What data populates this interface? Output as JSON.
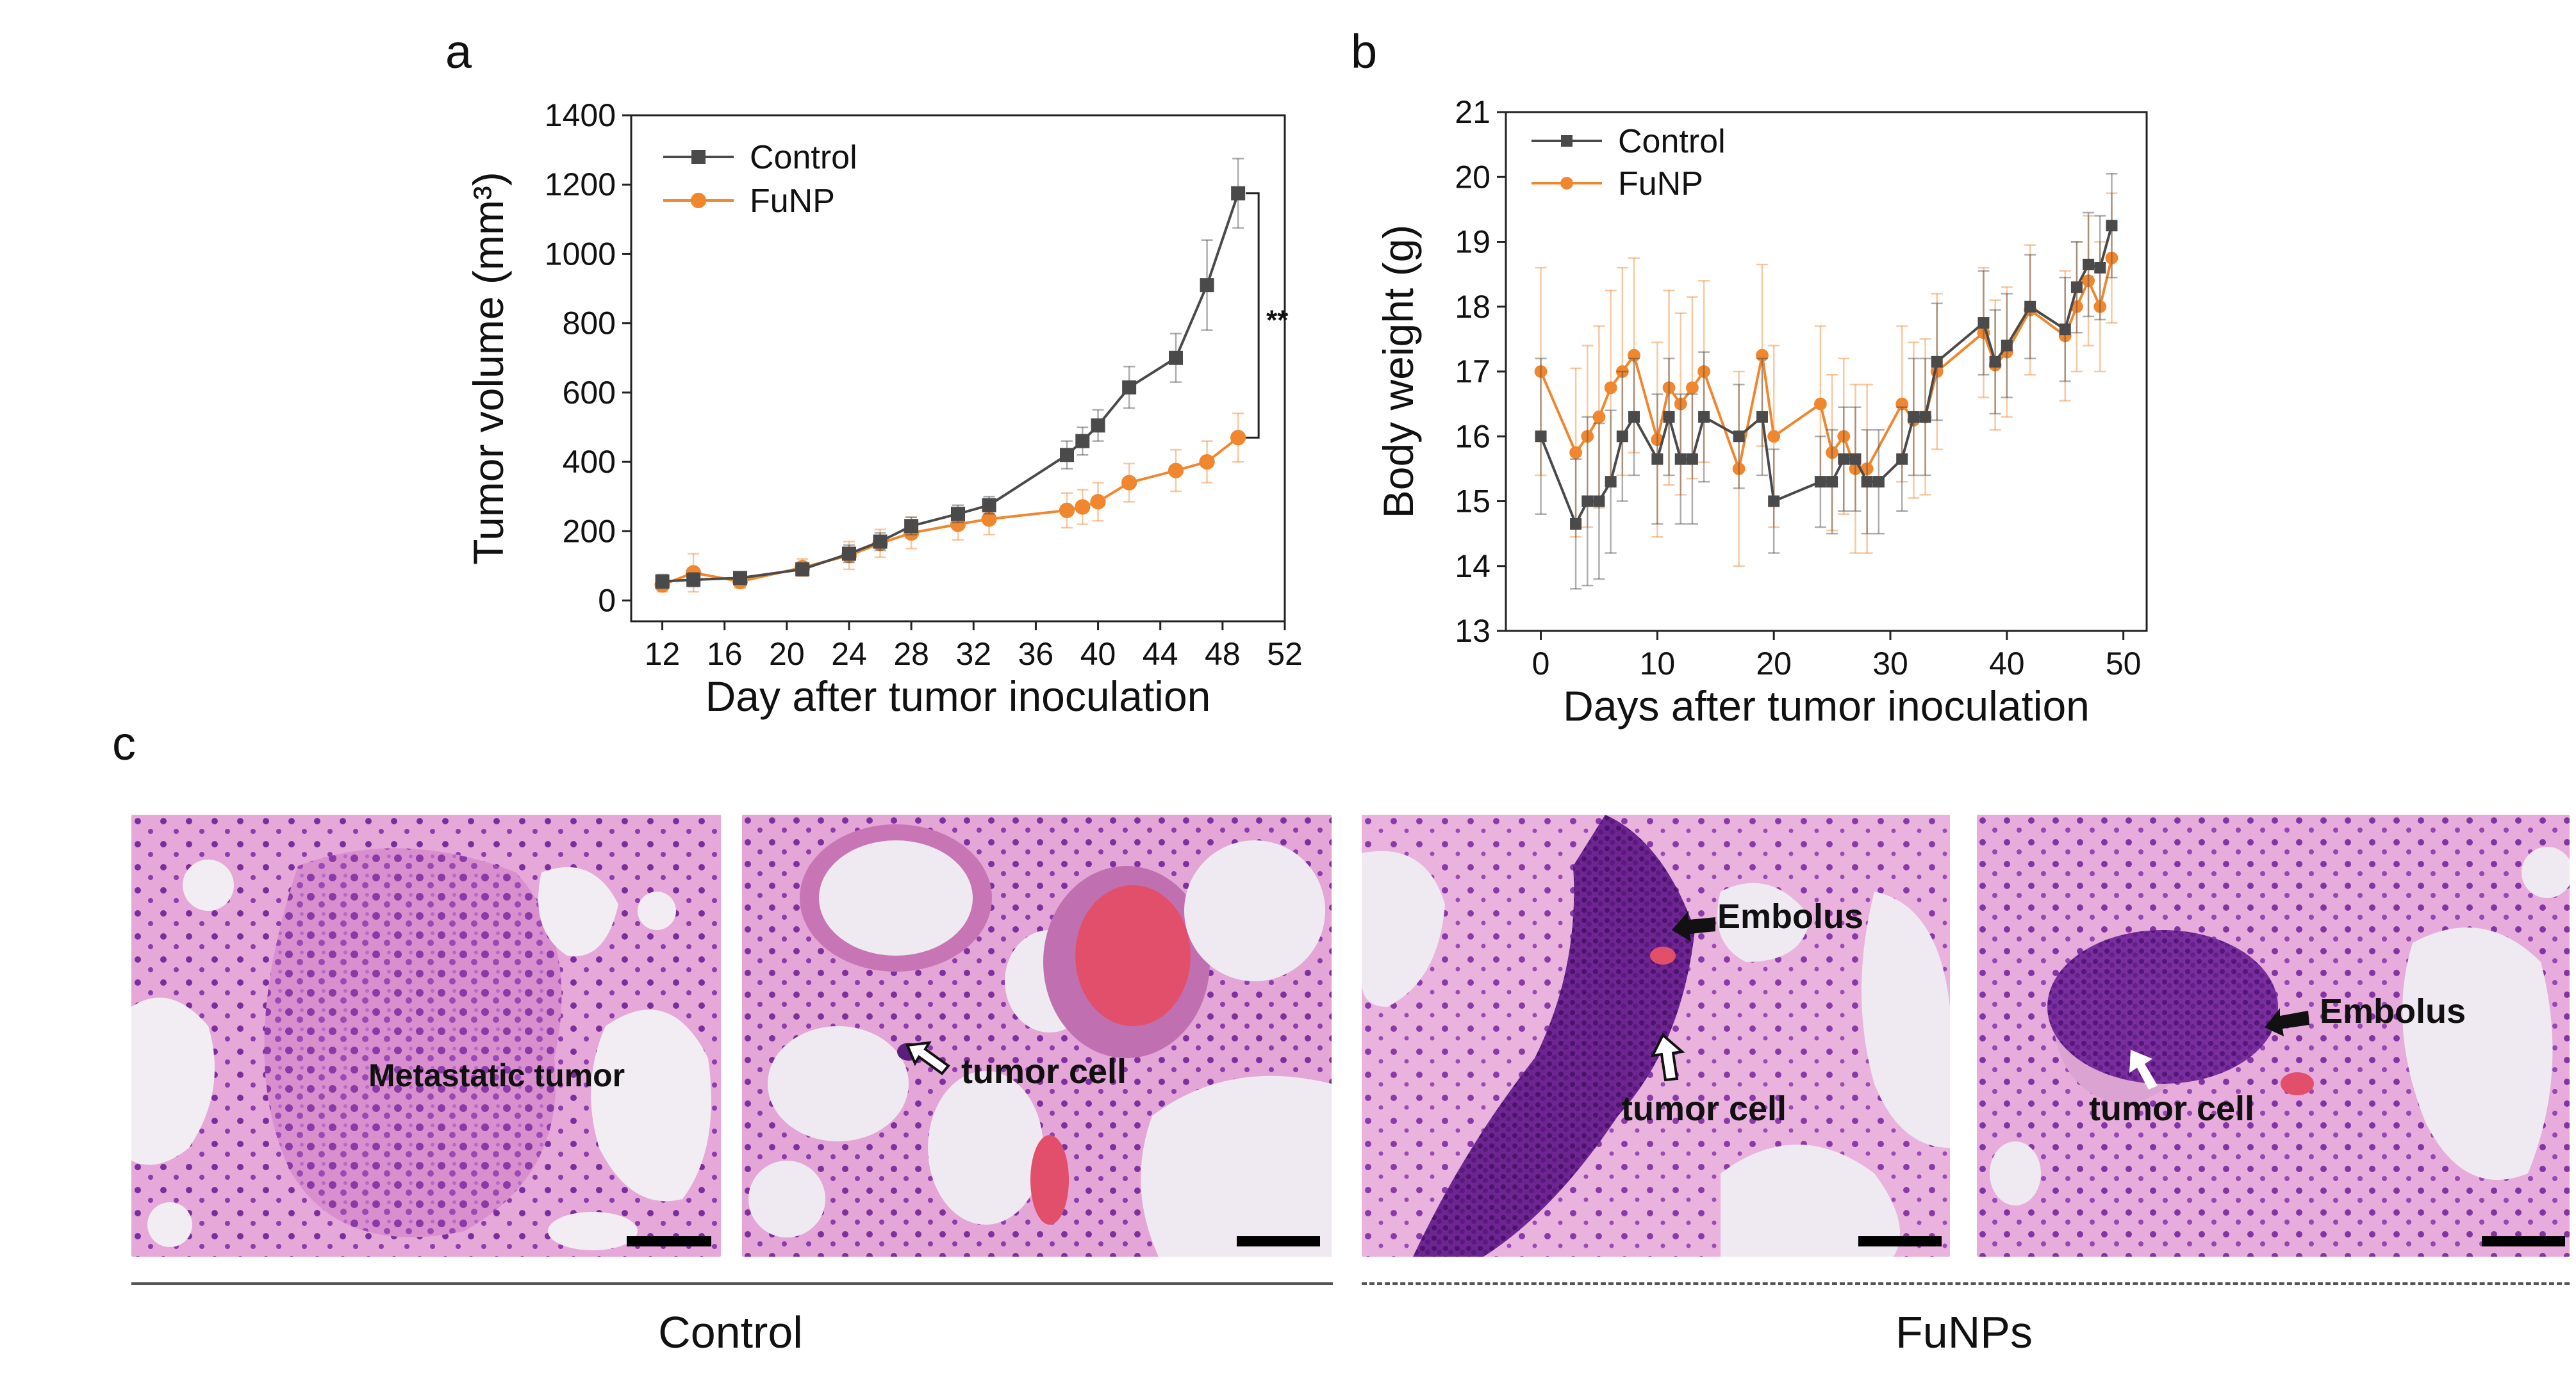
{
  "panels": {
    "a": "a",
    "b": "b",
    "c": "c"
  },
  "chart_data": [
    {
      "id": "a",
      "type": "line",
      "xlabel": "Day after tumor inoculation",
      "ylabel": "Tumor volume (mm³)",
      "xlim": [
        10,
        52
      ],
      "ylim": [
        -60,
        1400
      ],
      "xticks": [
        12,
        16,
        20,
        24,
        28,
        32,
        36,
        40,
        44,
        48,
        52
      ],
      "yticks": [
        0,
        200,
        400,
        600,
        800,
        1000,
        1200,
        1400
      ],
      "legend_position": "top-left",
      "significance": "**",
      "series": [
        {
          "name": "Control",
          "color": "#4a4a4a",
          "marker": "square",
          "x": [
            12,
            14,
            17,
            21,
            24,
            26,
            28,
            31,
            33,
            38,
            39,
            40,
            42,
            45,
            47,
            49
          ],
          "y": [
            55,
            60,
            65,
            90,
            135,
            170,
            215,
            250,
            275,
            420,
            460,
            505,
            615,
            700,
            910,
            1175
          ],
          "err": [
            20,
            20,
            18,
            15,
            25,
            25,
            25,
            25,
            25,
            40,
            40,
            45,
            60,
            70,
            130,
            100
          ]
        },
        {
          "name": "FuNP",
          "color": "#f0862d",
          "marker": "circle",
          "x": [
            12,
            14,
            17,
            21,
            24,
            26,
            28,
            31,
            33,
            38,
            39,
            40,
            42,
            45,
            47,
            49
          ],
          "y": [
            45,
            80,
            55,
            95,
            130,
            165,
            195,
            220,
            235,
            260,
            270,
            285,
            340,
            375,
            400,
            470
          ],
          "err": [
            20,
            55,
            20,
            25,
            40,
            40,
            45,
            45,
            45,
            50,
            50,
            55,
            55,
            60,
            60,
            70
          ]
        }
      ]
    },
    {
      "id": "b",
      "type": "line",
      "xlabel": "Days after tumor inoculation",
      "ylabel": "Body weight (g)",
      "xlim": [
        -3,
        52
      ],
      "ylim": [
        13,
        21
      ],
      "xticks": [
        0,
        10,
        20,
        30,
        40,
        50
      ],
      "yticks": [
        13,
        14,
        15,
        16,
        17,
        18,
        19,
        20,
        21
      ],
      "legend_position": "top-left",
      "series": [
        {
          "name": "Control",
          "color": "#4a4a4a",
          "marker": "square",
          "x": [
            0,
            3,
            4,
            5,
            6,
            7,
            8,
            10,
            11,
            12,
            13,
            14,
            17,
            19,
            20,
            24,
            25,
            26,
            27,
            28,
            29,
            31,
            32,
            33,
            34,
            38,
            39,
            40,
            42,
            45,
            46,
            47,
            48,
            49
          ],
          "y": [
            16.0,
            14.65,
            15.0,
            15.0,
            15.3,
            16.0,
            16.3,
            15.65,
            16.3,
            15.65,
            15.65,
            16.3,
            16.0,
            16.3,
            15.0,
            15.3,
            15.3,
            15.65,
            15.65,
            15.3,
            15.3,
            15.65,
            16.3,
            16.3,
            17.15,
            17.75,
            17.15,
            17.4,
            18.0,
            17.65,
            18.3,
            18.65,
            18.6,
            19.25
          ],
          "err": [
            1.2,
            1.0,
            1.3,
            1.2,
            1.1,
            1.0,
            0.9,
            1.0,
            0.9,
            1.0,
            1.0,
            1.0,
            0.8,
            0.9,
            0.8,
            0.7,
            0.8,
            0.8,
            0.8,
            0.8,
            0.8,
            0.8,
            0.9,
            0.9,
            0.9,
            0.8,
            0.8,
            0.8,
            0.8,
            0.8,
            0.7,
            0.8,
            0.8,
            0.8
          ]
        },
        {
          "name": "FuNP",
          "color": "#f0862d",
          "marker": "circle",
          "x": [
            0,
            3,
            4,
            5,
            6,
            7,
            8,
            10,
            11,
            12,
            13,
            14,
            17,
            19,
            20,
            24,
            25,
            26,
            27,
            28,
            31,
            32,
            33,
            34,
            38,
            39,
            40,
            42,
            45,
            46,
            47,
            48,
            49
          ],
          "y": [
            17.0,
            15.75,
            16.0,
            16.3,
            16.75,
            17.0,
            17.25,
            15.95,
            16.75,
            16.5,
            16.75,
            17.0,
            15.5,
            17.25,
            16.0,
            16.5,
            15.75,
            16.0,
            15.5,
            15.5,
            16.5,
            16.25,
            16.3,
            17.0,
            17.6,
            17.1,
            17.3,
            17.95,
            17.55,
            18.0,
            18.4,
            18.0,
            18.75
          ],
          "err": [
            1.6,
            1.3,
            1.4,
            1.4,
            1.5,
            1.6,
            1.5,
            1.5,
            1.5,
            1.4,
            1.4,
            1.4,
            1.5,
            1.4,
            1.4,
            1.2,
            1.2,
            1.2,
            1.3,
            1.3,
            1.2,
            1.2,
            1.2,
            1.2,
            1.0,
            1.0,
            1.0,
            1.0,
            1.0,
            1.0,
            1.0,
            1.0,
            1.0
          ]
        }
      ]
    }
  ],
  "histology": {
    "labels": {
      "metastatic": "Metastatic tumor",
      "tumor_cell_1": "tumor cell",
      "embolus_1": "Embolus",
      "tumor_cell_2": "tumor cell",
      "embolus_2": "Embolus",
      "tumor_cell_3": "tumor cell"
    },
    "groups": {
      "control": "Control",
      "funps": "FuNPs"
    },
    "colors": {
      "tissue_pink": "#e3a0d4",
      "nuclei_purple": "#7a2d9c",
      "lumen": "#f0ecf2",
      "blood_red": "#e24f6b"
    }
  }
}
